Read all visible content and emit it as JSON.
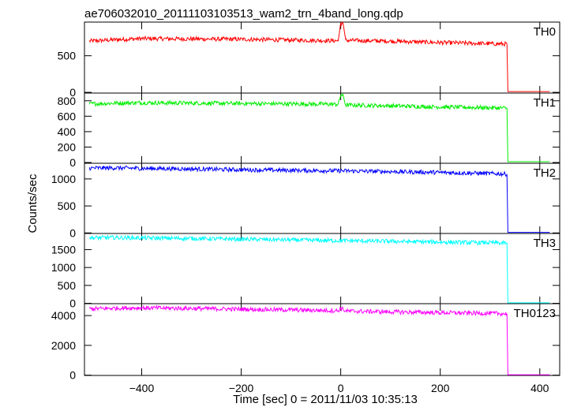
{
  "title": "ae706032010_20111103103513_wam2_trn_4band_long.qdp",
  "xlabel": "Time [sec] 0 = 2011/11/03 10:35:13",
  "ylabel": "Counts/sec",
  "chart_data": [
    {
      "type": "line",
      "name": "TH0",
      "color": "#ff0000",
      "xlim": [
        -515,
        440
      ],
      "ylim": [
        -10,
        960
      ],
      "yticks": [
        0,
        500
      ],
      "xticks": [
        -400,
        -200,
        0,
        200,
        400
      ],
      "series": [
        {
          "name": "TH0",
          "x": [
            -505,
            -450,
            -400,
            -300,
            -200,
            -100,
            -5,
            0,
            5,
            10,
            100,
            200,
            300,
            334,
            336,
            420
          ],
          "y": [
            700,
            720,
            735,
            730,
            725,
            715,
            705,
            950,
            930,
            710,
            700,
            680,
            665,
            660,
            10,
            10
          ]
        }
      ]
    },
    {
      "type": "line",
      "name": "TH1",
      "color": "#00ee00",
      "xlim": [
        -515,
        440
      ],
      "ylim": [
        -10,
        900
      ],
      "yticks": [
        0,
        200,
        400,
        600,
        800
      ],
      "xticks": [
        -400,
        -200,
        0,
        200,
        400
      ],
      "series": [
        {
          "name": "TH1",
          "x": [
            -505,
            -450,
            -400,
            -300,
            -200,
            -100,
            -5,
            0,
            5,
            10,
            100,
            200,
            300,
            334,
            336,
            420
          ],
          "y": [
            760,
            770,
            775,
            770,
            765,
            760,
            755,
            880,
            860,
            745,
            735,
            720,
            710,
            705,
            10,
            10
          ]
        }
      ]
    },
    {
      "type": "line",
      "name": "TH2",
      "color": "#0000ff",
      "xlim": [
        -515,
        440
      ],
      "ylim": [
        -10,
        1290
      ],
      "yticks": [
        0,
        500,
        1000
      ],
      "xticks": [
        -400,
        -200,
        0,
        200,
        400
      ],
      "series": [
        {
          "name": "TH2",
          "x": [
            -505,
            -450,
            -400,
            -300,
            -200,
            -100,
            0,
            100,
            200,
            300,
            334,
            336,
            420
          ],
          "y": [
            1200,
            1205,
            1195,
            1185,
            1170,
            1160,
            1150,
            1135,
            1120,
            1100,
            1090,
            10,
            10
          ]
        }
      ]
    },
    {
      "type": "line",
      "name": "TH3",
      "color": "#00ffff",
      "xlim": [
        -515,
        440
      ],
      "ylim": [
        -10,
        1950
      ],
      "yticks": [
        0,
        500,
        1000,
        1500
      ],
      "xticks": [
        -400,
        -200,
        0,
        200,
        400
      ],
      "series": [
        {
          "name": "TH3",
          "x": [
            -505,
            -450,
            -400,
            -300,
            -200,
            -100,
            0,
            100,
            200,
            300,
            334,
            336,
            420
          ],
          "y": [
            1830,
            1835,
            1825,
            1810,
            1790,
            1770,
            1750,
            1730,
            1710,
            1690,
            1680,
            15,
            15
          ]
        }
      ]
    },
    {
      "type": "line",
      "name": "TH0123",
      "color": "#ff00ff",
      "xlim": [
        -515,
        440
      ],
      "ylim": [
        -20,
        4800
      ],
      "yticks": [
        0,
        2000,
        4000
      ],
      "xticks": [
        -400,
        -200,
        0,
        200,
        400
      ],
      "series": [
        {
          "name": "TH0123",
          "x": [
            -505,
            -450,
            -400,
            -300,
            -200,
            -100,
            -5,
            0,
            5,
            10,
            100,
            200,
            300,
            334,
            336,
            420
          ],
          "y": [
            4450,
            4500,
            4520,
            4480,
            4430,
            4380,
            4330,
            4500,
            4420,
            4300,
            4250,
            4200,
            4150,
            4120,
            30,
            30
          ]
        }
      ]
    }
  ]
}
